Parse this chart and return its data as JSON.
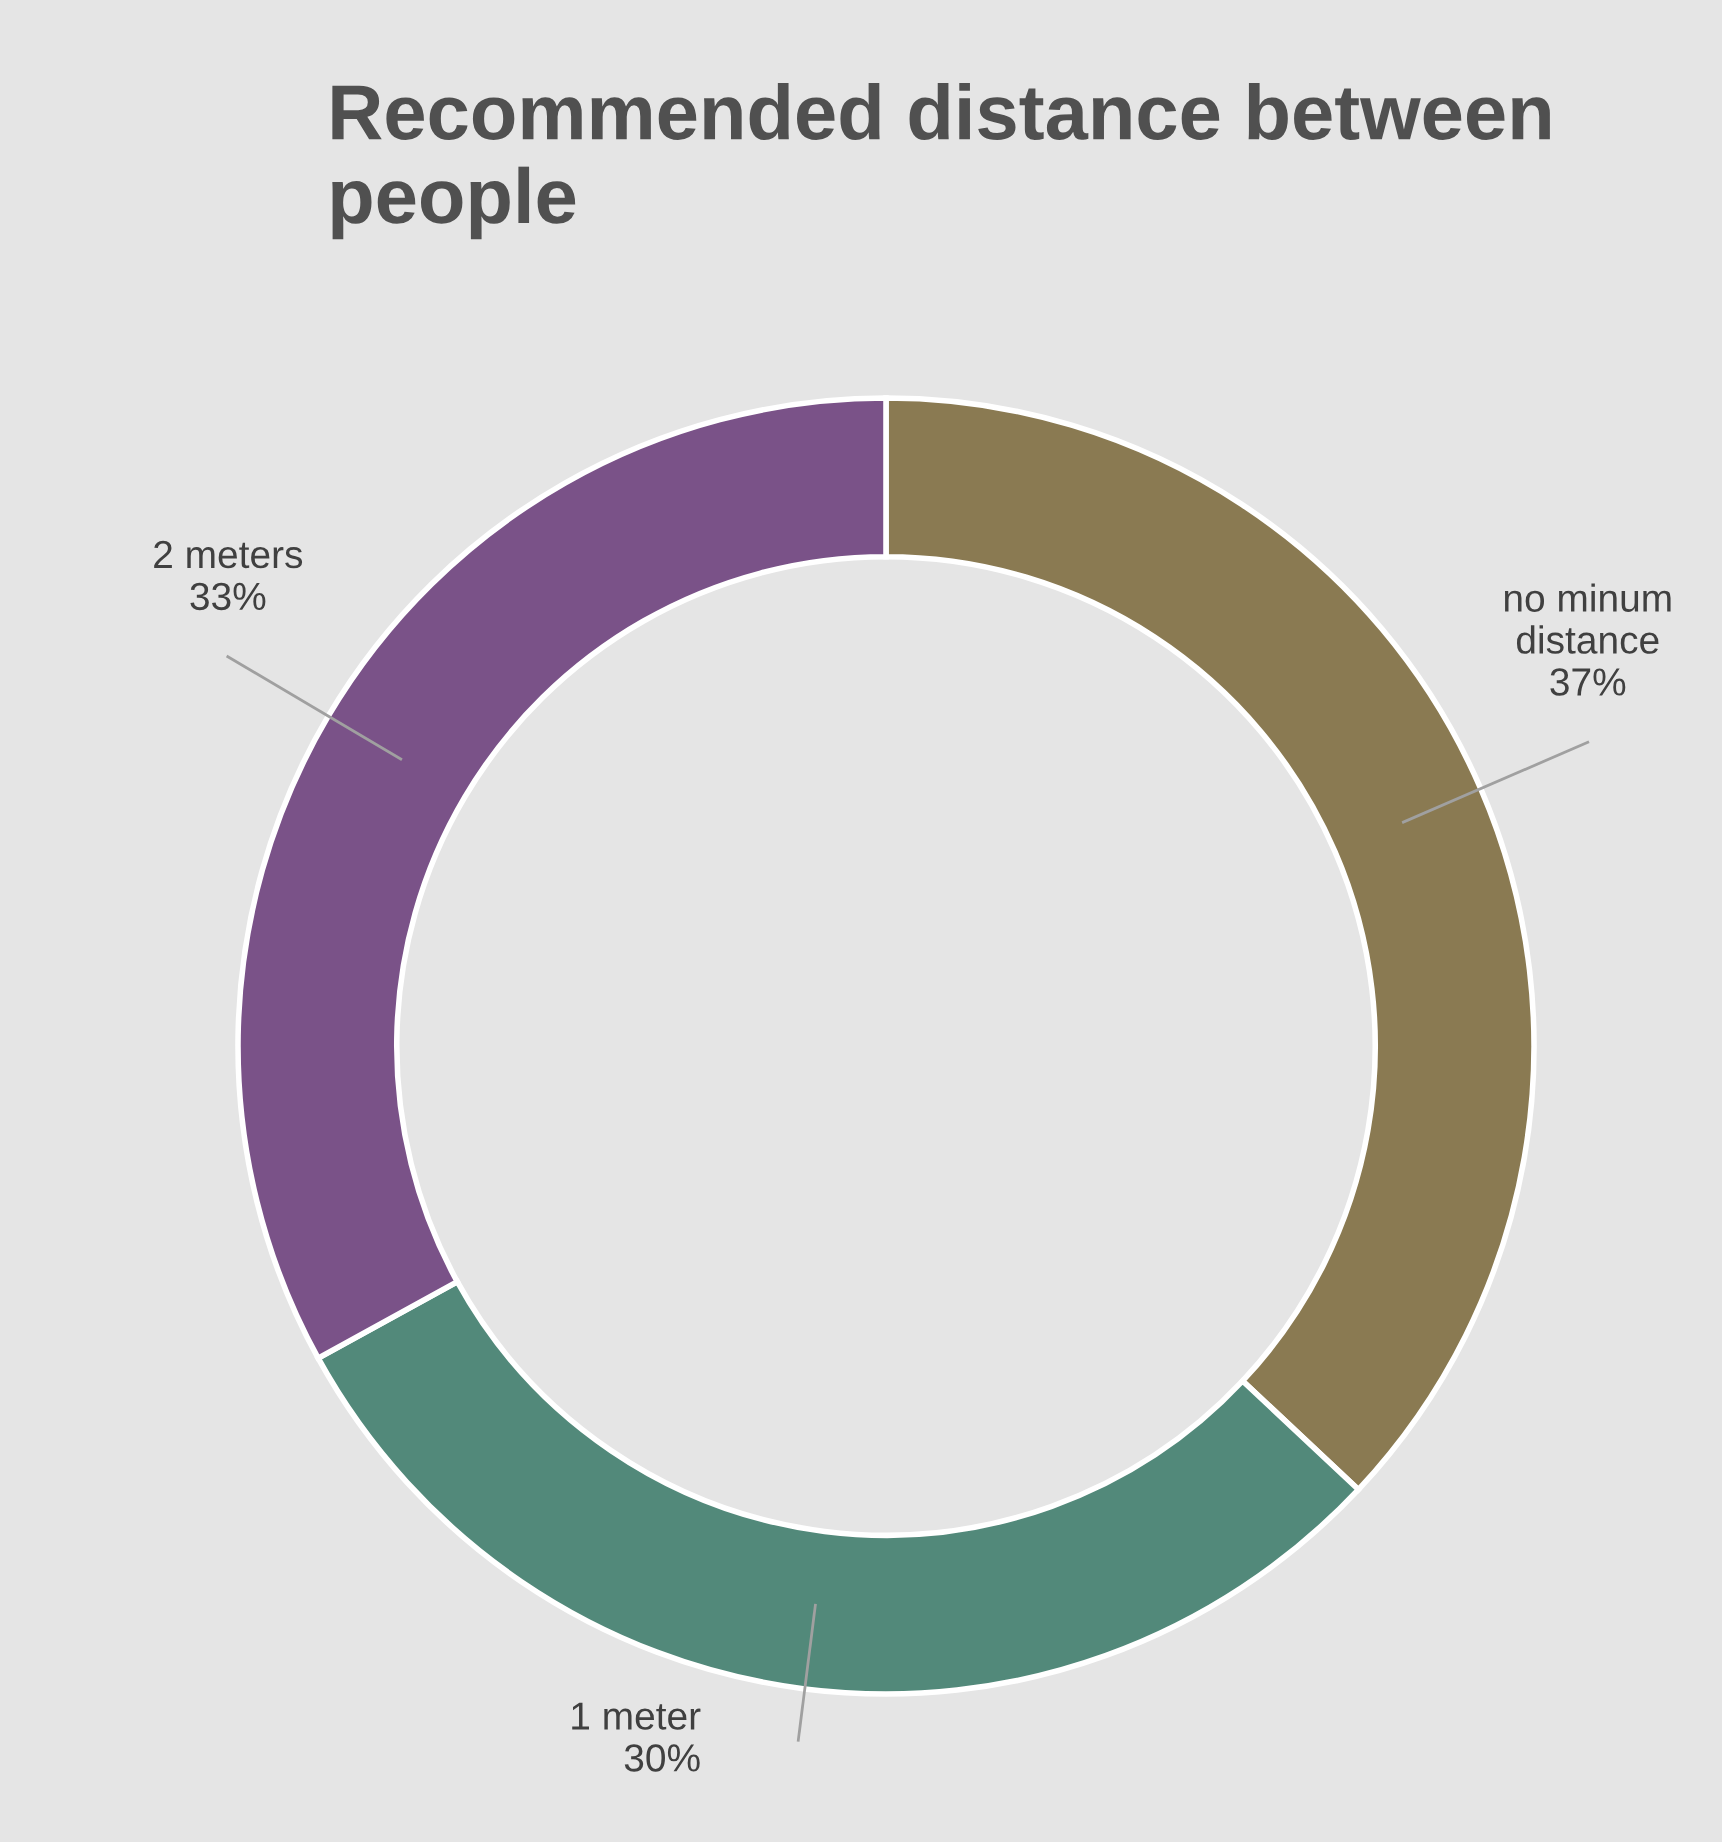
{
  "chart_data": {
    "type": "donut",
    "title": "Recommended distance between people",
    "categories": [
      "no minum\ndistance",
      "1 meter",
      "2 meters"
    ],
    "values": [
      37,
      30,
      33
    ],
    "value_labels": [
      "37%",
      "30%",
      "33%"
    ],
    "colors": [
      "#8a7a52",
      "#52897a",
      "#7a5288"
    ]
  }
}
